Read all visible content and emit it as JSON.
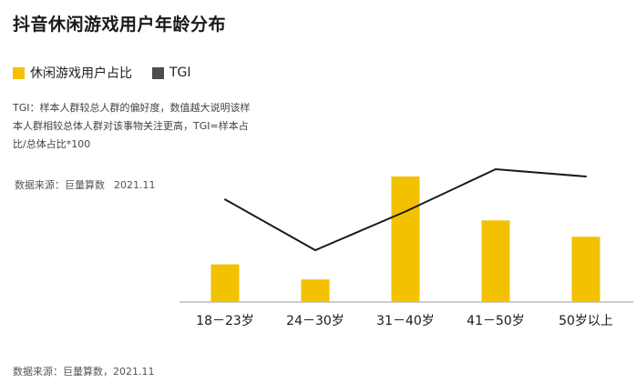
{
  "title": "抖音休闲游戏用户年龄分布",
  "note": "TGI：样本人群较总人群的偏好度，数值越大说明该样本人群相较总体人群对该事物关注更高，TGI=样本占比/总体占比*100",
  "source_top": {
    "label": "数据来源：巨量算数",
    "date": "2021.11"
  },
  "source_bottom": "数据来源：巨量算数，2021.11",
  "colors": {
    "bar": "#F2C200",
    "line": "#1a1a1a",
    "axis": "#999999"
  },
  "chart_data": {
    "type": "bar",
    "categories": [
      "18－23岁",
      "24－30岁",
      "31－40岁",
      "41－50岁",
      "50岁以上"
    ],
    "series": [
      {
        "name": "休闲游戏用户占比",
        "type": "bar",
        "values": [
          0.3,
          0.18,
          1.0,
          0.65,
          0.52
        ]
      },
      {
        "name": "TGI",
        "type": "line",
        "values": [
          0.75,
          0.33,
          0.65,
          1.0,
          0.94
        ]
      }
    ],
    "xlabel": "",
    "ylabel": "",
    "legend": "top-left",
    "grid": false
  }
}
